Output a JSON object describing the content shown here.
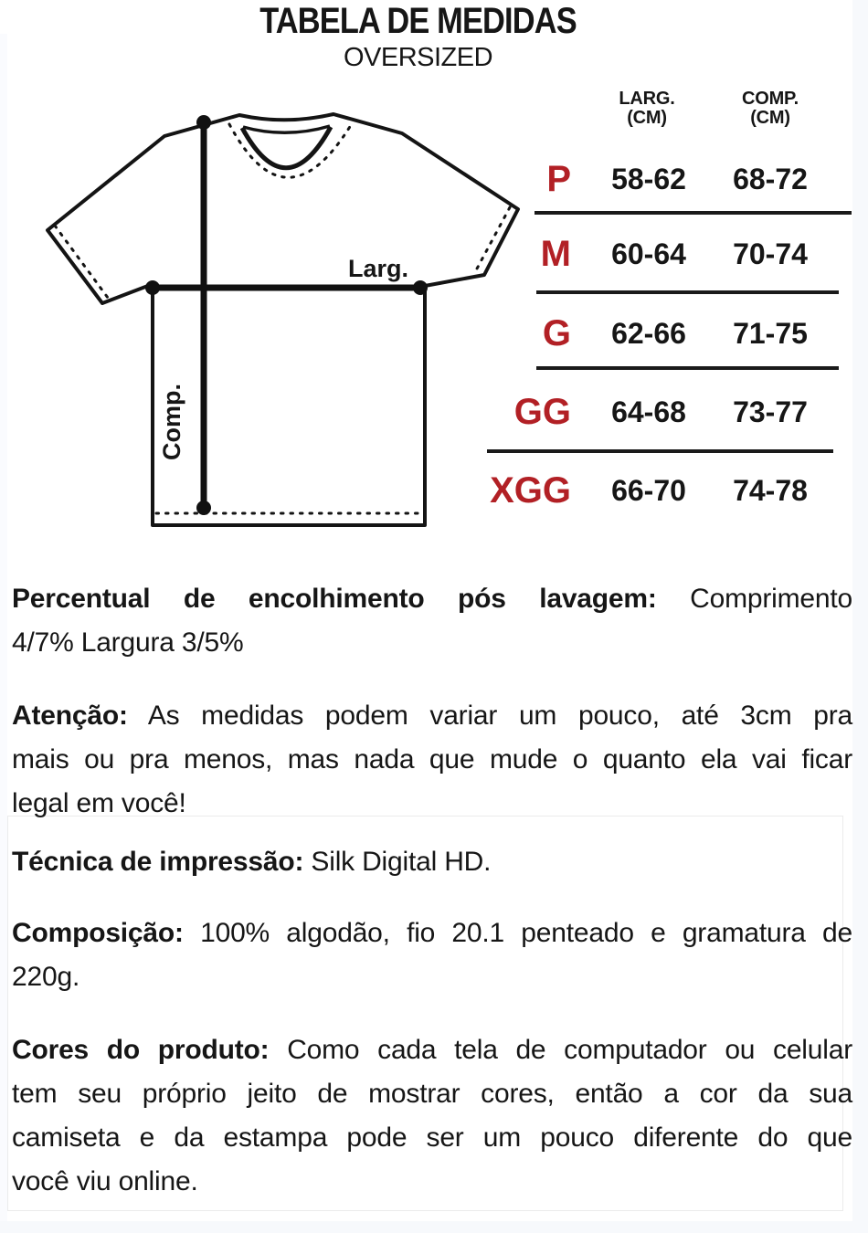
{
  "header": {
    "title": "TABELA DE MEDIDAS",
    "subtitle": "OVERSIZED"
  },
  "diagram": {
    "width_label": "Larg.",
    "length_label": "Comp."
  },
  "size_table": {
    "accent_color": "#b22025",
    "columns": [
      {
        "label": "LARG.",
        "unit": "(CM)"
      },
      {
        "label": "COMP.",
        "unit": "(CM)"
      }
    ],
    "rows": [
      {
        "size": "P",
        "larg": "58-62",
        "comp": "68-72"
      },
      {
        "size": "M",
        "larg": "60-64",
        "comp": "70-74"
      },
      {
        "size": "G",
        "larg": "62-66",
        "comp": "71-75"
      },
      {
        "size": "GG",
        "larg": "64-68",
        "comp": "73-77"
      },
      {
        "size": "XGG",
        "larg": "66-70",
        "comp": "74-78"
      }
    ]
  },
  "notes": {
    "shrinkage": {
      "lines": [
        {
          "bold": "Percentual de encolhimento pós lavagem:",
          "text": " Comprimento",
          "justify": true
        },
        {
          "text": "4/7% Largura 3/5%",
          "justify": false
        }
      ]
    },
    "attention": {
      "lines": [
        {
          "bold": "Atenção:",
          "text": " As medidas podem variar um pouco, até 3cm pra",
          "justify": true
        },
        {
          "text": "mais ou pra menos, mas nada que mude o quanto ela vai ficar",
          "justify": true
        },
        {
          "text": "legal em você!",
          "justify": false
        }
      ]
    },
    "technique": {
      "lines": [
        {
          "bold": "Técnica de impressão:",
          "text": " Silk Digital HD.",
          "justify": false
        }
      ]
    },
    "composition": {
      "lines": [
        {
          "bold": "Composição:",
          "text": " 100% algodão, fio 20.1 penteado e gramatura de",
          "justify": true
        },
        {
          "text": "220g.",
          "justify": false
        }
      ]
    },
    "colors": {
      "lines": [
        {
          "bold": "Cores do produto:",
          "text": " Como cada tela de computador ou celular",
          "justify": true
        },
        {
          "text": "tem seu próprio jeito de mostrar cores, então a cor da sua",
          "justify": true
        },
        {
          "text": "camiseta e da estampa pode ser um pouco diferente do que",
          "justify": true
        },
        {
          "text": "você viu online.",
          "justify": false
        }
      ]
    }
  }
}
